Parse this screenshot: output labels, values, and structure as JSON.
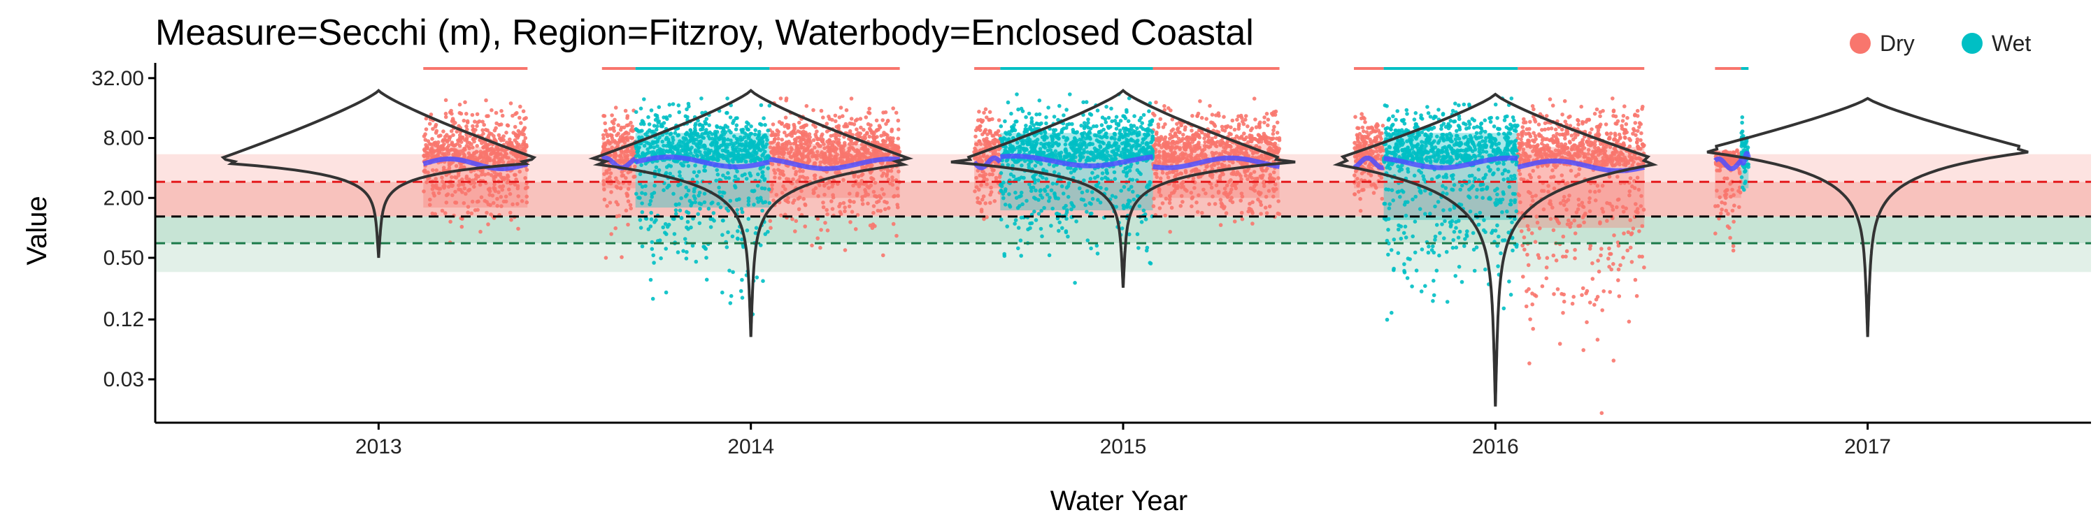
{
  "chart_data": {
    "type": "scatter",
    "title": "Measure=Secchi (m), Region=Fitzroy, Waterbody=Enclosed Coastal",
    "xlabel": "Water Year",
    "ylabel": "Value",
    "x_ticks": [
      "2013",
      "2014",
      "2015",
      "2016",
      "2017"
    ],
    "y_scale": "log2",
    "y_ticks": [
      "0.03",
      "0.12",
      "0.50",
      "2.00",
      "8.00",
      "32.00"
    ],
    "y_tick_values": [
      0.03,
      0.12,
      0.5,
      2.0,
      8.0,
      32.0
    ],
    "xlim": [
      2012.4,
      2017.6
    ],
    "ylim": [
      0.011,
      42
    ],
    "grid": false,
    "legend_position": "top-right",
    "legend": [
      {
        "name": "Dry",
        "color": "#F8766D"
      },
      {
        "name": "Wet",
        "color": "#00BFC4"
      }
    ],
    "colors": {
      "dry": "#F8766D",
      "wet": "#00BFC4",
      "smooth": "#4F4FFF",
      "violin": "#333333",
      "guideline_red": "#E41A1C",
      "guideline_black": "#000000",
      "guideline_green": "#1B7A4A"
    },
    "reference_lines": [
      {
        "value": 2.9,
        "style": "dashed",
        "color": "#E41A1C"
      },
      {
        "value": 1.3,
        "style": "dashed",
        "color": "#000000"
      },
      {
        "value": 0.7,
        "style": "dashed",
        "color": "#1B7A4A"
      }
    ],
    "reference_bands": [
      {
        "from": 2.9,
        "to": 5.5,
        "color": "#FDE3E1"
      },
      {
        "from": 1.3,
        "to": 2.9,
        "color": "#F8C2BD"
      },
      {
        "from": 0.7,
        "to": 1.3,
        "color": "#C7E4D5"
      },
      {
        "from": 0.36,
        "to": 0.7,
        "color": "#E2F0E8"
      }
    ],
    "series": [
      {
        "name": "Dry",
        "season_segments": [
          {
            "x0": 2013.12,
            "x1": 2013.4,
            "median": 4.4,
            "box_low": 1.6,
            "box_high": 6.5,
            "max": 20,
            "min": 0.55
          },
          {
            "x0": 2013.6,
            "x1": 2013.69,
            "median": 4.5,
            "box_low": 2.5,
            "box_high": 7.5,
            "max": 18,
            "min": 0.5
          },
          {
            "x0": 2014.05,
            "x1": 2014.4,
            "median": 4.4,
            "box_low": 2.0,
            "box_high": 7.0,
            "max": 20,
            "min": 0.5
          },
          {
            "x0": 2014.6,
            "x1": 2014.67,
            "median": 4.5,
            "box_low": 2.5,
            "box_high": 7.5,
            "max": 18,
            "min": 0.8
          },
          {
            "x0": 2015.08,
            "x1": 2015.42,
            "median": 4.5,
            "box_low": 2.0,
            "box_high": 7.0,
            "max": 20,
            "min": 0.8
          },
          {
            "x0": 2015.62,
            "x1": 2015.7,
            "median": 4.5,
            "box_low": 2.5,
            "box_high": 7.5,
            "max": 18,
            "min": 1.3
          },
          {
            "x0": 2016.06,
            "x1": 2016.4,
            "median": 4.2,
            "box_low": 1.0,
            "box_high": 6.5,
            "max": 20,
            "min": 0.012
          },
          {
            "x0": 2016.59,
            "x1": 2016.66,
            "median": 4.4,
            "box_low": 2.0,
            "box_high": 6.0,
            "max": 6.5,
            "min": 0.35
          }
        ]
      },
      {
        "name": "Wet",
        "season_segments": [
          {
            "x0": 2013.69,
            "x1": 2014.05,
            "median": 4.6,
            "box_low": 1.6,
            "box_high": 9.0,
            "max": 20,
            "min": 0.07
          },
          {
            "x0": 2014.67,
            "x1": 2015.08,
            "median": 4.7,
            "box_low": 1.5,
            "box_high": 9.0,
            "max": 22,
            "min": 0.28
          },
          {
            "x0": 2015.7,
            "x1": 2016.06,
            "median": 4.5,
            "box_low": 1.2,
            "box_high": 9.0,
            "max": 20,
            "min": 0.08
          },
          {
            "x0": 2016.66,
            "x1": 2016.68,
            "median": 5.0,
            "box_low": 2.5,
            "box_high": 8.0,
            "max": 14,
            "min": 2.0
          }
        ]
      }
    ],
    "violins": [
      {
        "x": 2013,
        "mode": 4.6,
        "max": 24,
        "min": 0.5
      },
      {
        "x": 2014,
        "mode": 4.6,
        "max": 24,
        "min": 0.08
      },
      {
        "x": 2015,
        "mode": 4.6,
        "max": 24,
        "min": 0.25
      },
      {
        "x": 2016,
        "mode": 4.6,
        "max": 22,
        "min": 0.016
      },
      {
        "x": 2017,
        "mode": 6.0,
        "max": 20,
        "min": 0.08
      }
    ]
  }
}
